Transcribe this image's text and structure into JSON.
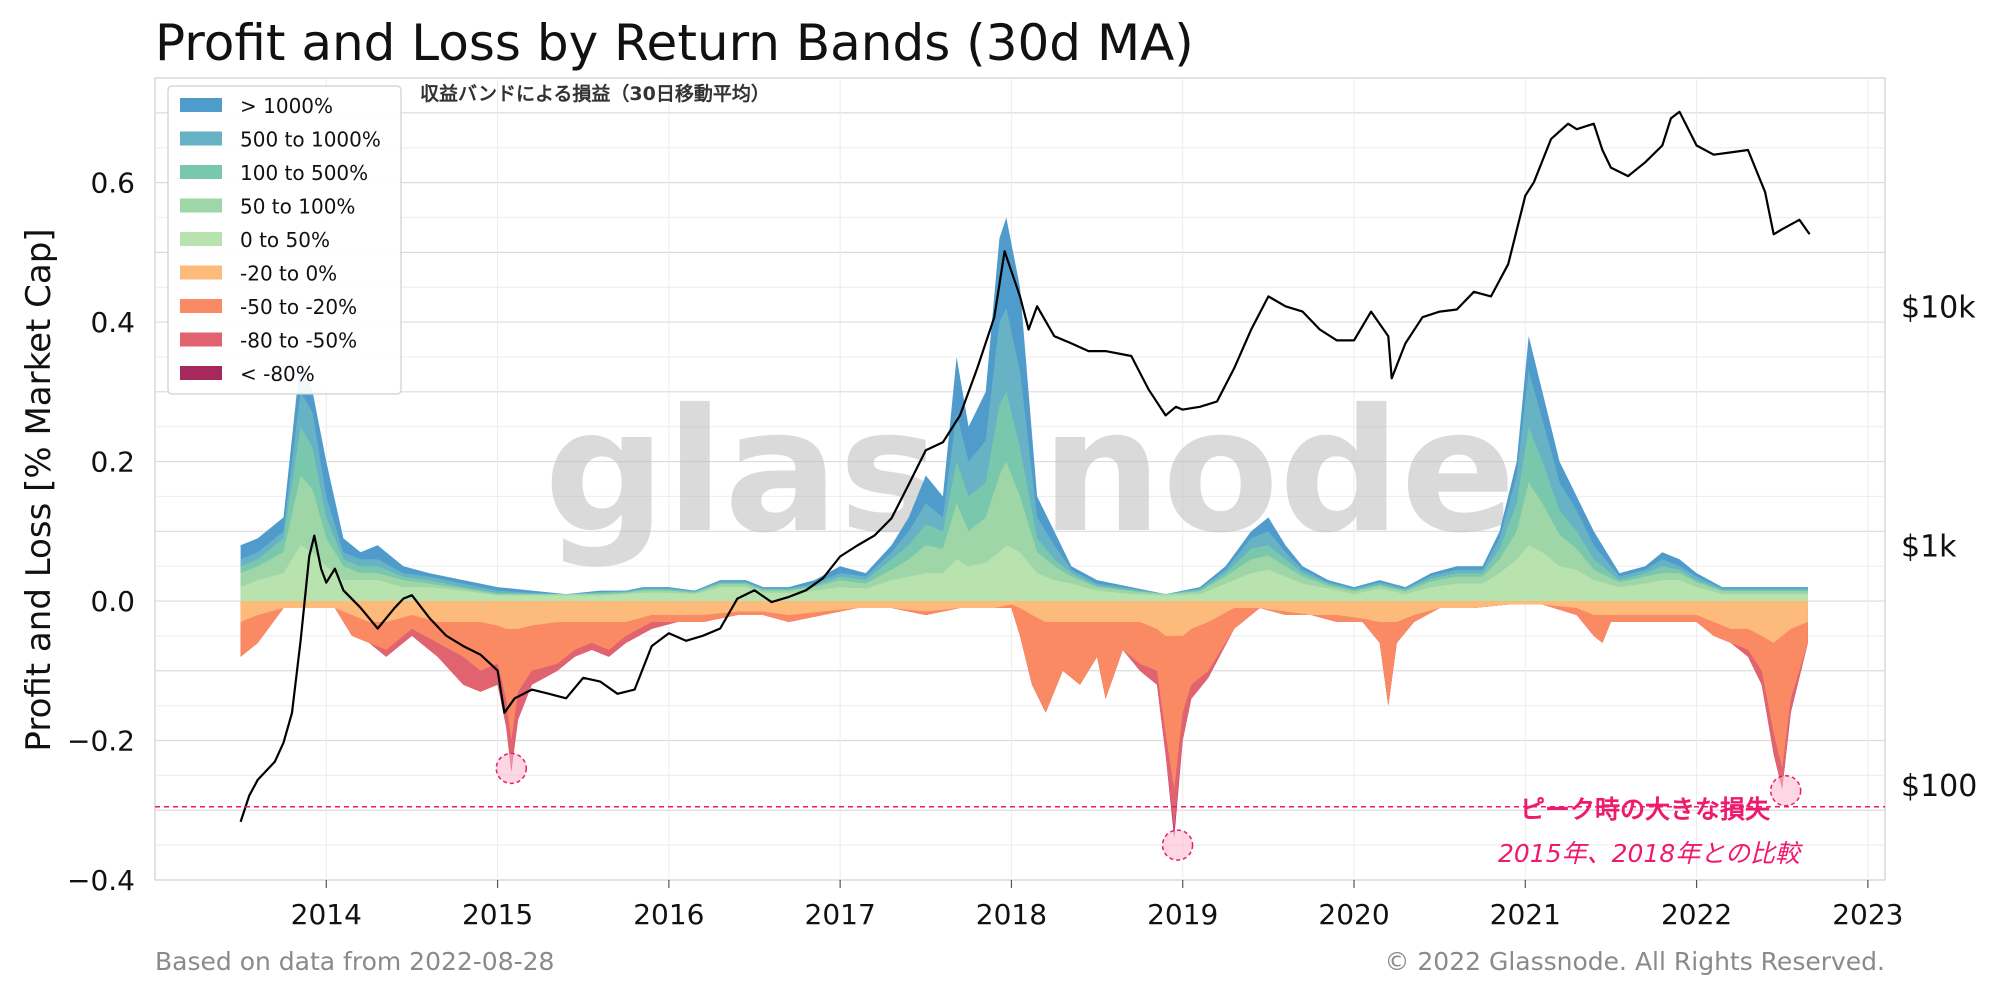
{
  "chart_data": {
    "type": "area",
    "title": "Profit and Loss by Return Bands (30d MA)",
    "subtitle": "収益バンドによる損益（30日移動平均）",
    "ylabel": "Profit and Loss [% Market Cap]",
    "xlabel": "",
    "ylim": [
      -0.4,
      0.75
    ],
    "y_ticks": [
      -0.4,
      -0.2,
      0.0,
      0.2,
      0.4,
      0.6
    ],
    "y_tick_labels": [
      "−0.4",
      "−0.2",
      "0.0",
      "0.2",
      "0.4",
      "0.6"
    ],
    "x_range": [
      2013.0,
      2023.1
    ],
    "x_ticks": [
      2014,
      2015,
      2016,
      2017,
      2018,
      2019,
      2020,
      2021,
      2022,
      2023
    ],
    "x_tick_labels": [
      "2014",
      "2015",
      "2016",
      "2017",
      "2018",
      "2019",
      "2020",
      "2021",
      "2022",
      "2023"
    ],
    "right_axis": {
      "scale": "log",
      "range": [
        40,
        90000
      ],
      "ticks": [
        100,
        1000,
        10000
      ],
      "tick_labels": [
        "$100",
        "$1k",
        "$10k"
      ]
    },
    "grid": true,
    "legend_position": "top-left",
    "profit_x": [
      2013.5,
      2013.6,
      2013.75,
      2013.85,
      2013.92,
      2014.0,
      2014.1,
      2014.2,
      2014.3,
      2014.45,
      2014.6,
      2014.8,
      2015.0,
      2015.2,
      2015.4,
      2015.6,
      2015.75,
      2015.85,
      2016.0,
      2016.15,
      2016.3,
      2016.45,
      2016.55,
      2016.7,
      2016.85,
      2017.0,
      2017.15,
      2017.3,
      2017.4,
      2017.5,
      2017.6,
      2017.68,
      2017.75,
      2017.85,
      2017.93,
      2017.97,
      2018.05,
      2018.15,
      2018.25,
      2018.35,
      2018.5,
      2018.7,
      2018.9,
      2019.1,
      2019.25,
      2019.4,
      2019.5,
      2019.6,
      2019.7,
      2019.85,
      2020.0,
      2020.15,
      2020.3,
      2020.45,
      2020.6,
      2020.75,
      2020.85,
      2020.95,
      2021.02,
      2021.1,
      2021.2,
      2021.3,
      2021.4,
      2021.55,
      2021.7,
      2021.8,
      2021.9,
      2022.0,
      2022.15,
      2022.3,
      2022.45,
      2022.55,
      2022.65
    ],
    "series": [
      {
        "name": "> 1000%",
        "color": "#4f9ccc",
        "values": [
          0.08,
          0.09,
          0.12,
          0.35,
          0.3,
          0.2,
          0.09,
          0.07,
          0.08,
          0.05,
          0.04,
          0.03,
          0.02,
          0.015,
          0.01,
          0.015,
          0.015,
          0.02,
          0.02,
          0.015,
          0.03,
          0.03,
          0.02,
          0.02,
          0.03,
          0.05,
          0.04,
          0.08,
          0.12,
          0.18,
          0.15,
          0.35,
          0.25,
          0.3,
          0.52,
          0.55,
          0.45,
          0.15,
          0.1,
          0.05,
          0.03,
          0.02,
          0.01,
          0.02,
          0.05,
          0.1,
          0.12,
          0.08,
          0.05,
          0.03,
          0.02,
          0.03,
          0.02,
          0.04,
          0.05,
          0.05,
          0.1,
          0.2,
          0.38,
          0.3,
          0.2,
          0.15,
          0.1,
          0.04,
          0.05,
          0.07,
          0.06,
          0.04,
          0.02,
          0.02,
          0.02,
          0.02,
          0.02
        ]
      },
      {
        "name": "500 to 1000%",
        "color": "#67b2c4",
        "values": [
          0.06,
          0.07,
          0.1,
          0.3,
          0.27,
          0.15,
          0.07,
          0.06,
          0.06,
          0.04,
          0.035,
          0.025,
          0.015,
          0.012,
          0.01,
          0.013,
          0.014,
          0.018,
          0.018,
          0.014,
          0.028,
          0.028,
          0.018,
          0.018,
          0.025,
          0.04,
          0.035,
          0.07,
          0.1,
          0.14,
          0.12,
          0.27,
          0.2,
          0.23,
          0.4,
          0.42,
          0.33,
          0.12,
          0.08,
          0.045,
          0.025,
          0.018,
          0.01,
          0.018,
          0.045,
          0.09,
          0.1,
          0.07,
          0.045,
          0.027,
          0.018,
          0.027,
          0.018,
          0.036,
          0.045,
          0.045,
          0.09,
          0.18,
          0.33,
          0.26,
          0.17,
          0.13,
          0.08,
          0.035,
          0.045,
          0.06,
          0.05,
          0.035,
          0.018,
          0.018,
          0.018,
          0.018,
          0.018
        ]
      },
      {
        "name": "100 to 500%",
        "color": "#79c8ad",
        "values": [
          0.05,
          0.06,
          0.09,
          0.25,
          0.22,
          0.12,
          0.06,
          0.05,
          0.05,
          0.035,
          0.03,
          0.02,
          0.012,
          0.01,
          0.01,
          0.012,
          0.013,
          0.017,
          0.017,
          0.013,
          0.026,
          0.026,
          0.017,
          0.017,
          0.022,
          0.035,
          0.03,
          0.06,
          0.08,
          0.11,
          0.1,
          0.2,
          0.15,
          0.17,
          0.28,
          0.3,
          0.22,
          0.09,
          0.06,
          0.04,
          0.022,
          0.016,
          0.01,
          0.016,
          0.04,
          0.075,
          0.08,
          0.06,
          0.04,
          0.025,
          0.016,
          0.024,
          0.016,
          0.032,
          0.04,
          0.04,
          0.075,
          0.14,
          0.25,
          0.2,
          0.13,
          0.1,
          0.06,
          0.03,
          0.04,
          0.05,
          0.045,
          0.03,
          0.016,
          0.016,
          0.016,
          0.016,
          0.016
        ]
      },
      {
        "name": "50 to 100%",
        "color": "#9ed6a7",
        "values": [
          0.04,
          0.05,
          0.07,
          0.18,
          0.16,
          0.09,
          0.05,
          0.04,
          0.04,
          0.03,
          0.025,
          0.018,
          0.01,
          0.01,
          0.01,
          0.01,
          0.012,
          0.015,
          0.015,
          0.012,
          0.024,
          0.024,
          0.015,
          0.015,
          0.02,
          0.03,
          0.025,
          0.045,
          0.06,
          0.08,
          0.075,
          0.14,
          0.1,
          0.12,
          0.18,
          0.2,
          0.15,
          0.07,
          0.05,
          0.035,
          0.02,
          0.014,
          0.01,
          0.014,
          0.035,
          0.06,
          0.065,
          0.05,
          0.035,
          0.022,
          0.014,
          0.022,
          0.014,
          0.028,
          0.035,
          0.035,
          0.06,
          0.1,
          0.17,
          0.14,
          0.095,
          0.075,
          0.045,
          0.027,
          0.035,
          0.04,
          0.04,
          0.027,
          0.014,
          0.014,
          0.014,
          0.014,
          0.014
        ]
      },
      {
        "name": "0 to 50%",
        "color": "#b8e2ae",
        "values": [
          0.02,
          0.03,
          0.04,
          0.08,
          0.07,
          0.05,
          0.03,
          0.03,
          0.03,
          0.02,
          0.02,
          0.015,
          0.008,
          0.008,
          0.008,
          0.008,
          0.01,
          0.012,
          0.012,
          0.01,
          0.02,
          0.02,
          0.012,
          0.012,
          0.015,
          0.02,
          0.018,
          0.03,
          0.035,
          0.04,
          0.04,
          0.06,
          0.05,
          0.055,
          0.07,
          0.08,
          0.07,
          0.04,
          0.03,
          0.025,
          0.015,
          0.01,
          0.008,
          0.01,
          0.025,
          0.04,
          0.045,
          0.035,
          0.025,
          0.018,
          0.01,
          0.018,
          0.01,
          0.02,
          0.025,
          0.025,
          0.04,
          0.06,
          0.08,
          0.07,
          0.05,
          0.045,
          0.03,
          0.02,
          0.025,
          0.03,
          0.03,
          0.02,
          0.01,
          0.01,
          0.01,
          0.01,
          0.01
        ]
      }
    ],
    "loss_x": [
      2013.5,
      2013.6,
      2013.75,
      2013.9,
      2014.05,
      2014.15,
      2014.25,
      2014.35,
      2014.5,
      2014.65,
      2014.8,
      2014.9,
      2015.0,
      2015.05,
      2015.08,
      2015.12,
      2015.2,
      2015.35,
      2015.45,
      2015.55,
      2015.65,
      2015.75,
      2015.9,
      2016.05,
      2016.2,
      2016.4,
      2016.55,
      2016.7,
      2016.9,
      2017.1,
      2017.3,
      2017.5,
      2017.7,
      2017.9,
      2018.0,
      2018.05,
      2018.12,
      2018.2,
      2018.3,
      2018.4,
      2018.5,
      2018.55,
      2018.65,
      2018.75,
      2018.85,
      2018.9,
      2018.95,
      2019.0,
      2019.05,
      2019.15,
      2019.3,
      2019.45,
      2019.6,
      2019.75,
      2019.9,
      2020.05,
      2020.15,
      2020.2,
      2020.25,
      2020.35,
      2020.5,
      2020.7,
      2020.9,
      2021.1,
      2021.3,
      2021.4,
      2021.45,
      2021.5,
      2021.6,
      2021.75,
      2021.9,
      2022.0,
      2022.1,
      2022.2,
      2022.3,
      2022.38,
      2022.45,
      2022.5,
      2022.55,
      2022.65
    ],
    "loss_series": [
      {
        "name": "-20 to 0%",
        "color": "#fdbb7b",
        "values": [
          -0.03,
          -0.02,
          -0.01,
          -0.01,
          -0.01,
          -0.02,
          -0.03,
          -0.03,
          -0.02,
          -0.03,
          -0.03,
          -0.03,
          -0.035,
          -0.04,
          -0.04,
          -0.04,
          -0.035,
          -0.03,
          -0.03,
          -0.03,
          -0.03,
          -0.03,
          -0.02,
          -0.02,
          -0.02,
          -0.015,
          -0.015,
          -0.02,
          -0.015,
          -0.01,
          -0.01,
          -0.015,
          -0.01,
          -0.01,
          -0.005,
          -0.01,
          -0.02,
          -0.03,
          -0.03,
          -0.03,
          -0.03,
          -0.03,
          -0.03,
          -0.03,
          -0.04,
          -0.05,
          -0.05,
          -0.05,
          -0.04,
          -0.03,
          -0.01,
          -0.01,
          -0.015,
          -0.02,
          -0.02,
          -0.025,
          -0.03,
          -0.03,
          -0.03,
          -0.02,
          -0.01,
          -0.01,
          -0.005,
          -0.005,
          -0.01,
          -0.02,
          -0.02,
          -0.02,
          -0.02,
          -0.02,
          -0.02,
          -0.02,
          -0.03,
          -0.04,
          -0.04,
          -0.05,
          -0.06,
          -0.05,
          -0.04,
          -0.03
        ]
      },
      {
        "name": "-50 to -20%",
        "color": "#f98a64",
        "values": [
          -0.08,
          -0.06,
          -0.01,
          -0.01,
          -0.01,
          -0.05,
          -0.06,
          -0.07,
          -0.04,
          -0.06,
          -0.08,
          -0.1,
          -0.09,
          -0.14,
          -0.2,
          -0.13,
          -0.1,
          -0.09,
          -0.07,
          -0.06,
          -0.07,
          -0.05,
          -0.03,
          -0.03,
          -0.03,
          -0.02,
          -0.02,
          -0.03,
          -0.02,
          -0.01,
          -0.01,
          -0.02,
          -0.01,
          -0.01,
          -0.01,
          -0.05,
          -0.12,
          -0.16,
          -0.1,
          -0.12,
          -0.08,
          -0.14,
          -0.07,
          -0.09,
          -0.1,
          -0.19,
          -0.27,
          -0.16,
          -0.12,
          -0.1,
          -0.04,
          -0.01,
          -0.02,
          -0.02,
          -0.03,
          -0.03,
          -0.06,
          -0.15,
          -0.06,
          -0.03,
          -0.01,
          -0.01,
          -0.005,
          -0.005,
          -0.02,
          -0.05,
          -0.06,
          -0.03,
          -0.03,
          -0.03,
          -0.03,
          -0.03,
          -0.05,
          -0.06,
          -0.07,
          -0.1,
          -0.19,
          -0.24,
          -0.14,
          -0.06
        ]
      },
      {
        "name": "-80 to -50%",
        "color": "#e0636f",
        "values": [
          -0.08,
          -0.06,
          -0.01,
          -0.01,
          -0.01,
          -0.05,
          -0.06,
          -0.08,
          -0.05,
          -0.08,
          -0.12,
          -0.13,
          -0.12,
          -0.18,
          -0.24,
          -0.17,
          -0.12,
          -0.1,
          -0.08,
          -0.07,
          -0.08,
          -0.06,
          -0.04,
          -0.03,
          -0.03,
          -0.02,
          -0.02,
          -0.03,
          -0.02,
          -0.01,
          -0.01,
          -0.02,
          -0.01,
          -0.01,
          -0.01,
          -0.05,
          -0.12,
          -0.16,
          -0.1,
          -0.12,
          -0.08,
          -0.14,
          -0.07,
          -0.1,
          -0.12,
          -0.22,
          -0.33,
          -0.2,
          -0.14,
          -0.11,
          -0.04,
          -0.01,
          -0.02,
          -0.02,
          -0.03,
          -0.03,
          -0.06,
          -0.15,
          -0.06,
          -0.03,
          -0.01,
          -0.01,
          -0.005,
          -0.005,
          -0.02,
          -0.05,
          -0.06,
          -0.03,
          -0.03,
          -0.03,
          -0.03,
          -0.03,
          -0.05,
          -0.06,
          -0.08,
          -0.12,
          -0.22,
          -0.27,
          -0.16,
          -0.06
        ]
      },
      {
        "name": "< -80%",
        "color": "#a6285d",
        "values": [
          -0.08,
          -0.06,
          -0.01,
          -0.01,
          -0.01,
          -0.05,
          -0.06,
          -0.08,
          -0.05,
          -0.08,
          -0.12,
          -0.13,
          -0.12,
          -0.18,
          -0.245,
          -0.17,
          -0.12,
          -0.1,
          -0.08,
          -0.07,
          -0.08,
          -0.06,
          -0.04,
          -0.03,
          -0.03,
          -0.02,
          -0.02,
          -0.03,
          -0.02,
          -0.01,
          -0.01,
          -0.02,
          -0.01,
          -0.01,
          -0.01,
          -0.05,
          -0.12,
          -0.16,
          -0.1,
          -0.12,
          -0.08,
          -0.14,
          -0.07,
          -0.1,
          -0.12,
          -0.22,
          -0.34,
          -0.2,
          -0.14,
          -0.11,
          -0.04,
          -0.01,
          -0.02,
          -0.02,
          -0.03,
          -0.03,
          -0.06,
          -0.15,
          -0.06,
          -0.03,
          -0.01,
          -0.01,
          -0.005,
          -0.005,
          -0.02,
          -0.05,
          -0.06,
          -0.03,
          -0.03,
          -0.03,
          -0.03,
          -0.03,
          -0.05,
          -0.06,
          -0.08,
          -0.12,
          -0.22,
          -0.27,
          -0.16,
          -0.06
        ]
      }
    ],
    "price_series": {
      "x": [
        2013.5,
        2013.55,
        2013.6,
        2013.7,
        2013.75,
        2013.8,
        2013.85,
        2013.9,
        2013.93,
        2013.97,
        2014.0,
        2014.05,
        2014.1,
        2014.2,
        2014.3,
        2014.4,
        2014.45,
        2014.5,
        2014.6,
        2014.7,
        2014.8,
        2014.9,
        2015.0,
        2015.04,
        2015.1,
        2015.2,
        2015.3,
        2015.4,
        2015.5,
        2015.6,
        2015.7,
        2015.8,
        2015.9,
        2016.0,
        2016.1,
        2016.2,
        2016.3,
        2016.4,
        2016.5,
        2016.6,
        2016.7,
        2016.8,
        2016.9,
        2017.0,
        2017.1,
        2017.2,
        2017.3,
        2017.4,
        2017.5,
        2017.6,
        2017.7,
        2017.8,
        2017.9,
        2017.96,
        2018.0,
        2018.05,
        2018.1,
        2018.15,
        2018.25,
        2018.35,
        2018.45,
        2018.55,
        2018.7,
        2018.8,
        2018.9,
        2018.96,
        2019.0,
        2019.1,
        2019.2,
        2019.3,
        2019.4,
        2019.5,
        2019.6,
        2019.7,
        2019.8,
        2019.9,
        2020.0,
        2020.1,
        2020.2,
        2020.22,
        2020.3,
        2020.4,
        2020.5,
        2020.6,
        2020.7,
        2020.8,
        2020.9,
        2021.0,
        2021.05,
        2021.15,
        2021.25,
        2021.3,
        2021.4,
        2021.45,
        2021.5,
        2021.6,
        2021.7,
        2021.8,
        2021.85,
        2021.9,
        2022.0,
        2022.1,
        2022.2,
        2022.3,
        2022.4,
        2022.45,
        2022.5,
        2022.6,
        2022.66
      ],
      "y": [
        70,
        90,
        105,
        125,
        150,
        200,
        400,
        900,
        1100,
        800,
        700,
        800,
        650,
        550,
        450,
        550,
        600,
        620,
        500,
        420,
        380,
        350,
        300,
        200,
        230,
        250,
        240,
        230,
        280,
        270,
        240,
        250,
        380,
        430,
        400,
        420,
        450,
        600,
        650,
        580,
        610,
        650,
        730,
        900,
        1000,
        1100,
        1300,
        1800,
        2500,
        2700,
        3500,
        5500,
        9000,
        17000,
        14000,
        11000,
        8000,
        10000,
        7500,
        7000,
        6500,
        6500,
        6200,
        4500,
        3500,
        3800,
        3700,
        3800,
        4000,
        5500,
        8000,
        11000,
        10000,
        9500,
        8000,
        7200,
        7200,
        9500,
        7500,
        5000,
        7000,
        9000,
        9500,
        9700,
        11500,
        11000,
        15000,
        29000,
        33000,
        50000,
        58000,
        55000,
        58000,
        45000,
        38000,
        35000,
        40000,
        47000,
        61000,
        65000,
        47000,
        43000,
        44000,
        45000,
        30000,
        20000,
        21000,
        23000,
        20000
      ]
    },
    "annotations": {
      "threshold_level": -0.295,
      "markers": [
        {
          "x": 2015.08,
          "y": -0.24
        },
        {
          "x": 2018.97,
          "y": -0.35
        },
        {
          "x": 2022.52,
          "y": -0.272
        }
      ],
      "note_line1": "ピーク時の大きな損失",
      "note_line2": "2015年、2018年との比較"
    },
    "watermark": "glassnode",
    "footer_left": "Based on data from 2022-08-28",
    "footer_right": "© 2022 Glassnode. All Rights Reserved."
  }
}
